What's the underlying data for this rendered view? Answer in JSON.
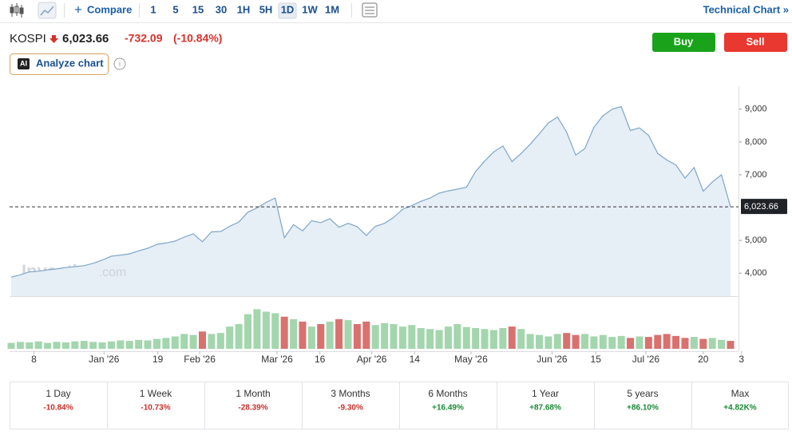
{
  "toolbar": {
    "compare": "Compare",
    "intervals": [
      "1",
      "5",
      "15",
      "30",
      "1H",
      "5H",
      "1D",
      "1W",
      "1M"
    ],
    "active_interval": 6,
    "technical_chart": "Technical Chart »"
  },
  "header": {
    "symbol": "KOSPI",
    "change": "-732.09",
    "change_pct": "(-10.84%)"
  },
  "buttons": {
    "buy": "Buy",
    "sell": "Sell"
  },
  "analyze": {
    "badge": "AI",
    "label": "Analyze chart"
  },
  "chart_data": {
    "type": "line",
    "watermark": "Investing",
    "watermark_suffix": ".com",
    "series": [
      {
        "name": "KOSPI",
        "color": "#7ea6c9",
        "values": [
          3880,
          3950,
          4040,
          4060,
          4100,
          4130,
          4170,
          4200,
          4230,
          4300,
          4400,
          4520,
          4550,
          4590,
          4680,
          4760,
          4880,
          4920,
          4980,
          5100,
          5200,
          4960,
          5260,
          5270,
          5430,
          5560,
          5860,
          5990,
          6160,
          6290,
          5080,
          5480,
          5290,
          5600,
          5540,
          5660,
          5400,
          5520,
          5420,
          5150,
          5430,
          5520,
          5700,
          5950,
          6060,
          6190,
          6290,
          6440,
          6510,
          6560,
          6620,
          7100,
          7420,
          7700,
          7880,
          7400,
          7650,
          7930,
          8250,
          8580,
          8760,
          8300,
          7600,
          7800,
          8450,
          8800,
          9000,
          9080,
          8350,
          8430,
          8200,
          7650,
          7450,
          7300,
          6900,
          7220,
          6500,
          6780,
          7000,
          6023.66
        ]
      }
    ],
    "volume": {
      "values": [
        12,
        14,
        13,
        15,
        12,
        14,
        13,
        15,
        16,
        14,
        13,
        15,
        17,
        16,
        18,
        17,
        20,
        22,
        25,
        30,
        28,
        35,
        30,
        32,
        45,
        50,
        70,
        80,
        75,
        72,
        65,
        60,
        55,
        45,
        50,
        55,
        60,
        58,
        50,
        55,
        48,
        52,
        50,
        45,
        48,
        42,
        40,
        38,
        45,
        50,
        44,
        42,
        40,
        38,
        42,
        45,
        40,
        30,
        28,
        25,
        30,
        32,
        28,
        30,
        25,
        28,
        24,
        26,
        22,
        25,
        24,
        28,
        30,
        26,
        22,
        24,
        20,
        22,
        18,
        16
      ],
      "up_color": "#a3d6ad",
      "down_color": "#d9716f",
      "lim": [
        0,
        100
      ]
    },
    "xlim": [
      0,
      79
    ],
    "xticks": [
      {
        "value": 2.5,
        "label": "8"
      },
      {
        "value": 10.2,
        "label": "Jan '26"
      },
      {
        "value": 16.1,
        "label": "19"
      },
      {
        "value": 20.7,
        "label": "Feb '26"
      },
      {
        "value": 29.2,
        "label": "Mar '26"
      },
      {
        "value": 33.9,
        "label": "16"
      },
      {
        "value": 39.6,
        "label": "Apr '26"
      },
      {
        "value": 44.3,
        "label": "14"
      },
      {
        "value": 50.5,
        "label": "May '26"
      },
      {
        "value": 59.4,
        "label": "Jun '26"
      },
      {
        "value": 64.2,
        "label": "15"
      },
      {
        "value": 69.7,
        "label": "Jul '26"
      },
      {
        "value": 76.0,
        "label": "20"
      },
      {
        "value": 80.2,
        "label": "3"
      }
    ],
    "ylim": [
      3300,
      9700
    ],
    "yticks": [
      {
        "value": 4000,
        "label": "4,000"
      },
      {
        "value": 5000,
        "label": "5,000"
      },
      {
        "value": 7000,
        "label": "7,000"
      },
      {
        "value": 8000,
        "label": "8,000"
      },
      {
        "value": 9000,
        "label": "9,000"
      }
    ],
    "current": {
      "value": 6023.66,
      "label": "6,023.66"
    }
  },
  "performance": [
    {
      "period": "1 Day",
      "change": "-10.84%"
    },
    {
      "period": "1 Week",
      "change": "-10.73%"
    },
    {
      "period": "1 Month",
      "change": "-28.39%"
    },
    {
      "period": "3 Months",
      "change": "-9.30%"
    },
    {
      "period": "6 Months",
      "change": "+16.49%"
    },
    {
      "period": "1 Year",
      "change": "+87.68%"
    },
    {
      "period": "5 years",
      "change": "+86.10%"
    },
    {
      "period": "Max",
      "change": "+4.82K%"
    }
  ]
}
